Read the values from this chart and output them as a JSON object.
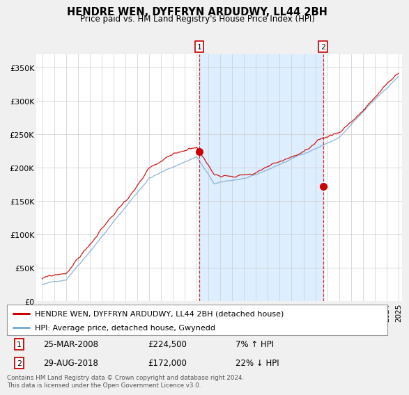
{
  "title": "HENDRE WEN, DYFFRYN ARDUDWY, LL44 2BH",
  "subtitle": "Price paid vs. HM Land Registry's House Price Index (HPI)",
  "ylabel_ticks": [
    "£0",
    "£50K",
    "£100K",
    "£150K",
    "£200K",
    "£250K",
    "£300K",
    "£350K"
  ],
  "ytick_values": [
    0,
    50000,
    100000,
    150000,
    200000,
    250000,
    300000,
    350000
  ],
  "ylim": [
    0,
    370000
  ],
  "sale1_x": 2008.23,
  "sale1_price": 224500,
  "sale1_date_str": "25-MAR-2008",
  "sale1_price_str": "£224,500",
  "sale1_hpi_str": "7% ↑ HPI",
  "sale2_x": 2018.66,
  "sale2_price": 172000,
  "sale2_date_str": "29-AUG-2018",
  "sale2_price_str": "£172,000",
  "sale2_hpi_str": "22% ↓ HPI",
  "legend_house": "HENDRE WEN, DYFFRYN ARDUDWY, LL44 2BH (detached house)",
  "legend_hpi": "HPI: Average price, detached house, Gwynedd",
  "footnote": "Contains HM Land Registry data © Crown copyright and database right 2024.\nThis data is licensed under the Open Government Licence v3.0.",
  "house_color": "#cc0000",
  "hpi_color": "#7dadd4",
  "shade_color": "#ddeeff",
  "background_color": "#f0f0f0",
  "plot_bg_color": "#ffffff",
  "xmin": 1995.0,
  "xmax": 2025.0
}
